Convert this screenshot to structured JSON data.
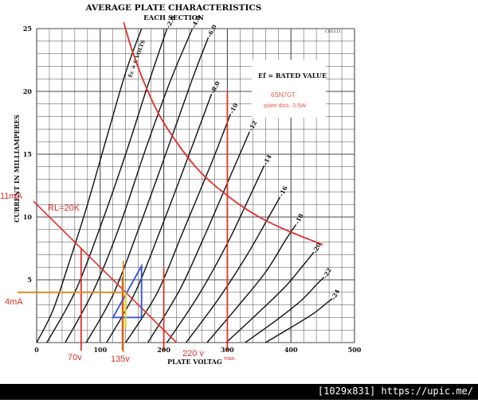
{
  "chart_data": {
    "type": "line",
    "title": "AVERAGE PLATE CHARACTERISTICS",
    "subtitle": "EACH SECTION",
    "xlabel": "PLATE VOLTAG",
    "ylabel": "CURRENT IN MILLIAMPERES",
    "xlim": [
      0,
      500
    ],
    "ylim": [
      0,
      25
    ],
    "grid": true,
    "x_ticks": [
      "0",
      "100",
      "200",
      "300",
      "400",
      "500"
    ],
    "y_ticks": [
      "5",
      "10",
      "15",
      "20",
      "25"
    ],
    "code": "CB5111",
    "legend_box": {
      "line1": "Ef = RATED VALUE",
      "line2": "6SN7GT",
      "line3": "plate diss. 3.5W"
    },
    "grid_label": "Ec = 0 VOLTS",
    "curves": [
      {
        "label": "",
        "x": [
          0,
          25,
          50,
          80,
          110,
          140,
          165
        ],
        "y": [
          0,
          2.5,
          6.2,
          11.0,
          16.3,
          21.5,
          25
        ]
      },
      {
        "label": "-2.0",
        "x": [
          16,
          60,
          100,
          140,
          175,
          205
        ],
        "y": [
          0,
          4.0,
          9.2,
          15.0,
          20.5,
          25
        ]
      },
      {
        "label": "-4.0",
        "x": [
          45,
          90,
          130,
          170,
          210,
          245
        ],
        "y": [
          0,
          4.2,
          9.2,
          15.2,
          20.8,
          25
        ]
      },
      {
        "label": "-6.0",
        "x": [
          78,
          120,
          160,
          205,
          245,
          270
        ],
        "y": [
          0,
          3.8,
          9.0,
          15.3,
          21.0,
          24.3
        ]
      },
      {
        "label": "-8.0",
        "x": [
          110,
          155,
          195,
          240,
          275
        ],
        "y": [
          0,
          4.0,
          9.0,
          15.0,
          19.8
        ]
      },
      {
        "label": "-10",
        "x": [
          140,
          190,
          230,
          275,
          305
        ],
        "y": [
          0,
          4.0,
          8.8,
          14.3,
          18.2
        ]
      },
      {
        "label": "-12",
        "x": [
          175,
          225,
          265,
          305,
          335
        ],
        "y": [
          0,
          4.2,
          8.6,
          13.3,
          16.8
        ]
      },
      {
        "label": "-14",
        "x": [
          205,
          255,
          300,
          335,
          358
        ],
        "y": [
          0,
          3.8,
          7.9,
          11.6,
          14.1
        ]
      },
      {
        "label": "-16",
        "x": [
          235,
          285,
          330,
          365,
          383
        ],
        "y": [
          0,
          3.4,
          6.9,
          10.0,
          11.6
        ]
      },
      {
        "label": "-18",
        "x": [
          268,
          315,
          360,
          392,
          408
        ],
        "y": [
          0,
          2.8,
          5.6,
          8.2,
          9.4
        ]
      },
      {
        "label": "-20",
        "x": [
          298,
          345,
          390,
          420,
          436
        ],
        "y": [
          0,
          2.2,
          4.4,
          6.2,
          7.2
        ]
      },
      {
        "label": "-22",
        "x": [
          328,
          375,
          415,
          440,
          452
        ],
        "y": [
          0,
          1.7,
          3.3,
          4.6,
          5.2
        ]
      },
      {
        "label": "-24",
        "x": [
          360,
          400,
          435,
          455,
          465
        ],
        "y": [
          0,
          1.2,
          2.3,
          3.1,
          3.5
        ]
      }
    ],
    "dissipation_curve": {
      "x": [
        137,
        150,
        170,
        200,
        250,
        300,
        350,
        400,
        450
      ],
      "y": [
        25.5,
        23.3,
        20.6,
        17.5,
        14.0,
        11.7,
        10.0,
        8.8,
        7.8
      ]
    },
    "load_line": {
      "label": "RL=20K",
      "x": [
        0,
        220
      ],
      "y": [
        11,
        0
      ]
    },
    "annotations": {
      "current_11": "11mA",
      "current_4": "4mA",
      "v70": "70v",
      "v135": "135v",
      "v220": "220 v",
      "max": "max."
    },
    "markers": {
      "vlines_red": [
        {
          "x": 70,
          "y_top": 7.5
        },
        {
          "x": 135,
          "y_top": 5.2
        },
        {
          "x": 200,
          "y_top": 5.9
        },
        {
          "x": 300,
          "y_top": 20
        }
      ],
      "vline_orange": {
        "x": 135,
        "y_top": 6.5
      },
      "hline_orange": {
        "y": 4.0,
        "x_end": 135
      },
      "triangle_blue": [
        [
          120,
          2.0
        ],
        [
          165,
          6.1
        ],
        [
          165,
          2.0
        ]
      ],
      "vline_yellow": {
        "x": 135,
        "y_bottom": 1.2,
        "y_top": 4.0
      }
    },
    "colors": {
      "curves": "#111111",
      "grid": "#4a4a4a",
      "red": "#e0302a",
      "orange": "#d98c22",
      "blue": "#3050e0",
      "yellow": "#e6d21a",
      "legend_red": "#e85a4a"
    }
  },
  "footer": {
    "text": "[1029x831]  https://upic.me/"
  }
}
